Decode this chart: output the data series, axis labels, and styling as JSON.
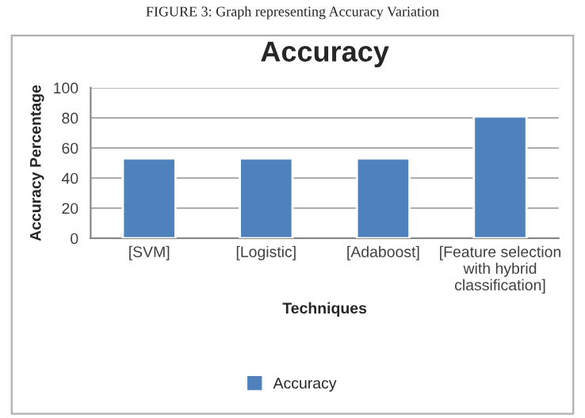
{
  "chart_data": {
    "type": "bar",
    "title": "Accuracy",
    "xlabel": "Techniques",
    "ylabel": "Accuracy Percentage",
    "annotations": [
      "FIGURE 3: Graph representing Accuracy Variation"
    ],
    "categories": [
      "[SVM]",
      "[Logistic]",
      "[Adaboost]",
      "[Feature selection\nwith hybrid\nclassification]"
    ],
    "series": [
      {
        "name": "Accuracy",
        "color": "#4f81bd",
        "values": [
          53,
          53,
          53,
          81
        ]
      }
    ],
    "ylim": [
      0,
      100
    ],
    "yticks": [
      0,
      20,
      40,
      60,
      80,
      100
    ],
    "grid": "y",
    "legend": "bottom"
  }
}
